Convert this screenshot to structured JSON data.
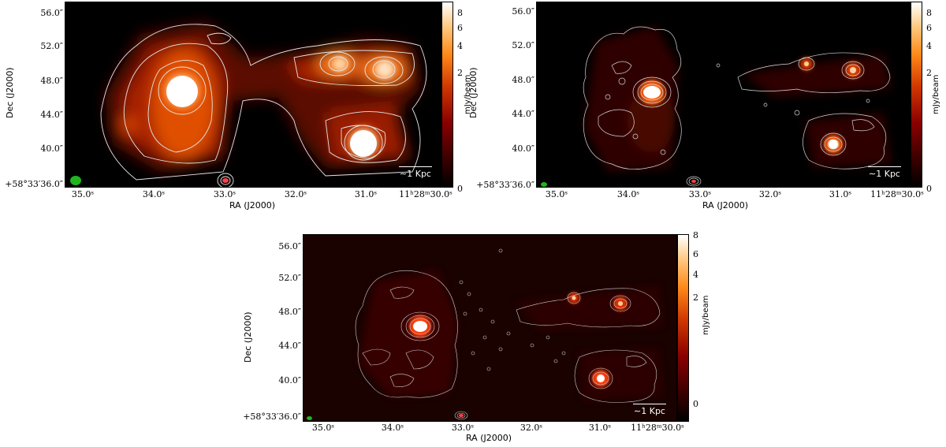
{
  "panels": [
    {
      "ylabel": "Dec (J2000)",
      "xlabel": "RA (J2000)",
      "yticks": [
        "56.0″",
        "52.0″",
        "48.0″",
        "44.0″",
        "40.0″",
        "+58°33′36.0″"
      ],
      "xticks": [
        "35.0ˢ",
        "34.0ˢ",
        "33.0ˢ",
        "32.0ˢ",
        "31.0ˢ",
        "11ʰ28ᵐ30.0ˢ"
      ],
      "colorbar_label": "mJy/beam",
      "colorbar_ticks": [
        "8",
        "6",
        "4",
        "2",
        "0"
      ],
      "scalebar": "∼1 Kpc"
    },
    {
      "ylabel": "Dec (J2000)",
      "xlabel": "RA (J2000)",
      "yticks": [
        "56.0″",
        "52.0″",
        "48.0″",
        "44.0″",
        "40.0″",
        "+58°33′36.0″"
      ],
      "xticks": [
        "35.0ˢ",
        "34.0ˢ",
        "33.0ˢ",
        "32.0ˢ",
        "31.0ˢ",
        "11ʰ28ᵐ30.0ˢ"
      ],
      "colorbar_label": "mJy/beam",
      "colorbar_ticks": [
        "8",
        "6",
        "4",
        "2",
        "0"
      ],
      "scalebar": "∼1 Kpc"
    },
    {
      "ylabel": "Dec (J2000)",
      "xlabel": "RA (J2000)",
      "yticks": [
        "56.0″",
        "52.0″",
        "48.0″",
        "44.0″",
        "40.0″",
        "+58°33′36.0″"
      ],
      "xticks": [
        "35.0ˢ",
        "34.0ˢ",
        "33.0ˢ",
        "32.0ˢ",
        "31.0ˢ",
        "11ʰ28ᵐ30.0ˢ"
      ],
      "colorbar_label": "mJy/beam",
      "colorbar_ticks": [
        "8",
        "6",
        "4",
        "2",
        "0"
      ],
      "scalebar": "∼1 Kpc"
    }
  ],
  "colors": {
    "background": "#000000",
    "contour": "#e6e6e6",
    "beam": "#1fb51f",
    "hot": "#ff7a1a",
    "core": "#ffffff"
  }
}
